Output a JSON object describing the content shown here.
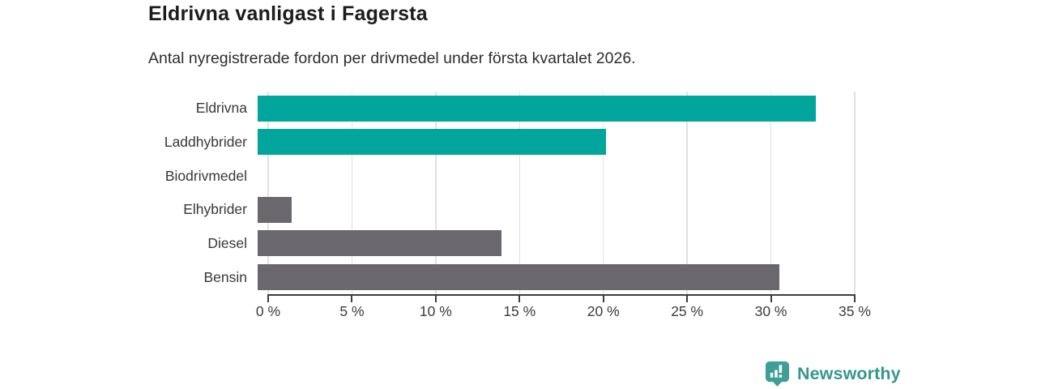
{
  "chart": {
    "title": "Eldrivna vanligast i Fagersta",
    "subtitle": "Antal nyregistrerade fordon per drivmedel under första kvartalet 2026."
  },
  "chart_data": {
    "type": "bar",
    "orientation": "horizontal",
    "title": "Eldrivna vanligast i Fagersta",
    "subtitle": "Antal nyregistrerade fordon per drivmedel under första kvartalet 2026.",
    "categories": [
      "Eldrivna",
      "Laddhybrider",
      "Biodrivmedel",
      "Elhybrider",
      "Diesel",
      "Bensin"
    ],
    "values": [
      32.7,
      20.4,
      0,
      2,
      14.3,
      30.6
    ],
    "unit": "%",
    "bar_colors": [
      "#00a69b",
      "#00a69b",
      "#6a686c",
      "#6a686c",
      "#6a686c",
      "#6a686c"
    ],
    "xlabel": "",
    "ylabel": "",
    "xlim": [
      0,
      35
    ],
    "x_tick_values": [
      0,
      5,
      10,
      15,
      20,
      25,
      30,
      35
    ],
    "x_tick_labels": [
      "0 %",
      "5 %",
      "10 %",
      "15 %",
      "20 %",
      "25 %",
      "30 %",
      "35 %"
    ],
    "grid": "vertical-gridlines-on",
    "legend": "none"
  },
  "colors": {
    "teal": "#00a69b",
    "gray": "#6a686c",
    "gridline": "#e1e1e1",
    "axis": "#3d3d3d",
    "title_text": "#1c1c1c",
    "brand_teal": "#35978f",
    "brand_icon_teal": "#3f9e97"
  },
  "footer": {
    "brand": "Newsworthy"
  }
}
